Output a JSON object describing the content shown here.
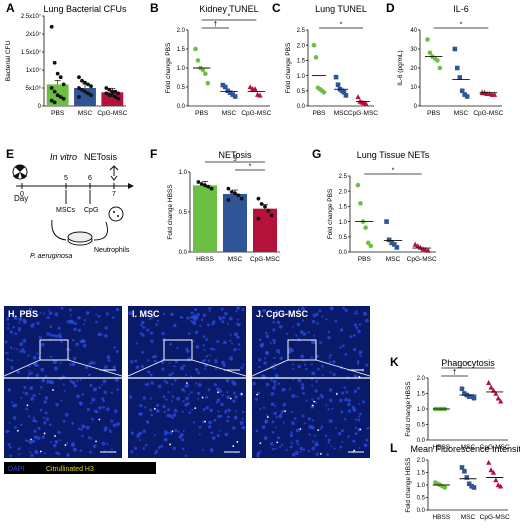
{
  "colors": {
    "green": "#6cbf43",
    "blue": "#2f5597",
    "red": "#b5123a",
    "dots": "#111111",
    "microscopy_bg": "#0a1a6b",
    "cell_blue": "#2a4de0",
    "cit_yellow": "#d9d51a"
  },
  "panels": {
    "A": {
      "letter": "A",
      "title": "Lung Bacterial CFUs",
      "ylabel": "Bacterial CFU",
      "categories": [
        "PBS",
        "MSC",
        "CpG-MSC"
      ],
      "yticks": [
        "0",
        "5x10⁶",
        "1x10⁷",
        "1.5x10⁷",
        "2x10⁷",
        "2.5x10⁷"
      ],
      "bar_colors": [
        "#6cbf43",
        "#2f5597",
        "#b5123a"
      ]
    },
    "B": {
      "letter": "B",
      "title": "Kidney TUNEL",
      "ylabel": "Fold change PBS",
      "categories": [
        "PBS",
        "MSC",
        "CpG-MSC"
      ],
      "yticks": [
        "0.0",
        "0.5",
        "1.0",
        "1.5",
        "2.0"
      ],
      "annotations": [
        "†",
        "*"
      ]
    },
    "C": {
      "letter": "C",
      "title": "Lung TUNEL",
      "ylabel": "Fold change PBS",
      "categories": [
        "PBS",
        "MSC",
        "CpG-MSC"
      ],
      "yticks": [
        "0.0",
        "0.5",
        "1.0",
        "1.5",
        "2.0",
        "2.5"
      ],
      "annotations": [
        "*"
      ]
    },
    "D": {
      "letter": "D",
      "title": "IL-6",
      "ylabel": "IL-6 (pg/mL)",
      "categories": [
        "PBS",
        "MSC",
        "CpG-MSC"
      ],
      "yticks": [
        "0",
        "10",
        "20",
        "30",
        "40"
      ],
      "annotations": [
        "*"
      ]
    },
    "E": {
      "letter": "E",
      "title": "In vitro NETosis",
      "day_label": "Day",
      "day_ticks": [
        "0",
        "5",
        "6",
        "7"
      ],
      "mscs_label": "MSCs",
      "cpg_label": "CpG",
      "bacteria_label": "P. aeruginosa",
      "neutrophils_label": "Neutrophils"
    },
    "F": {
      "letter": "F",
      "title": "NETosis",
      "ylabel": "Fold change HBSS",
      "categories": [
        "HBSS",
        "MSC",
        "CpG-MSC"
      ],
      "yticks": [
        "0.0",
        "0.5",
        "1.0"
      ],
      "annotations": [
        "*",
        "§"
      ]
    },
    "G": {
      "letter": "G",
      "title": "Lung Tissue NETs",
      "ylabel": "Fold change PBS",
      "categories": [
        "PBS",
        "MSC",
        "CpG-MSC"
      ],
      "yticks": [
        "0.0",
        "0.5",
        "1.0",
        "1.5",
        "2.0",
        "2.5"
      ],
      "annotations": [
        "*"
      ]
    },
    "H": {
      "label": "H. PBS"
    },
    "I": {
      "label": "I. MSC"
    },
    "J": {
      "label": "J. CpG-MSC"
    },
    "legend": {
      "dapi": "DAPI",
      "cit": "Citrullinated H3"
    },
    "K": {
      "letter": "K",
      "title": "Phagocytosis",
      "ylabel": "Fold change HBSS",
      "categories": [
        "HBSS",
        "MSC",
        "CpG-MSC"
      ],
      "yticks": [
        "0.0",
        "0.5",
        "1.0",
        "1.5",
        "2.0"
      ],
      "annotations": [
        "†",
        "*"
      ]
    },
    "L": {
      "letter": "L",
      "title": "Mean Fluorescence Intensity",
      "ylabel": "Fold change HBSS",
      "categories": [
        "HBSS",
        "MSC",
        "CpG-MSC"
      ],
      "yticks": [
        "0.0",
        "0.5",
        "1.0",
        "1.5",
        "2.0"
      ]
    }
  },
  "chart_data": [
    {
      "panel": "A",
      "type": "bar",
      "title": "Lung Bacterial CFUs",
      "ylabel": "Bacterial CFU",
      "categories": [
        "PBS",
        "MSC",
        "CpG-MSC"
      ],
      "values": [
        6000000,
        5000000,
        3800000
      ],
      "ylim": [
        0,
        25000000
      ],
      "points": [
        [
          22000000.0,
          12000000.0,
          9000000.0,
          8000000.0,
          6000000.0,
          5000000.0,
          4000000.0,
          3000000.0,
          2500000.0,
          2000000.0,
          1500000.0,
          1000000.0
        ],
        [
          8000000.0,
          7000000.0,
          6500000.0,
          6000000.0,
          5500000.0,
          5000000.0,
          4500000.0,
          4000000.0,
          3500000.0,
          3000000.0,
          2500000.0
        ],
        [
          5000000.0,
          4500000.0,
          4000000.0,
          4000000.0,
          3500000.0,
          3500000.0,
          3000000.0,
          3000000.0,
          2500000.0,
          2000000.0
        ]
      ]
    },
    {
      "panel": "B",
      "type": "scatter",
      "title": "Kidney TUNEL",
      "ylabel": "Fold change PBS",
      "categories": [
        "PBS",
        "MSC",
        "CpG-MSC"
      ],
      "means": [
        1.0,
        0.38,
        0.38
      ],
      "ylim": [
        0,
        2.0
      ],
      "points": [
        [
          1.5,
          1.2,
          1.0,
          0.95,
          0.85,
          0.6
        ],
        [
          0.55,
          0.5,
          0.4,
          0.35,
          0.3,
          0.25
        ],
        [
          0.5,
          0.45,
          0.45,
          0.3,
          0.28
        ]
      ]
    },
    {
      "panel": "C",
      "type": "scatter",
      "title": "Lung TUNEL",
      "ylabel": "Fold change PBS",
      "categories": [
        "PBS",
        "MSC",
        "CpG-MSC"
      ],
      "means": [
        1.0,
        0.55,
        0.15
      ],
      "ylim": [
        0,
        2.5
      ],
      "points": [
        [
          2.0,
          1.6,
          0.6,
          0.55,
          0.5,
          0.45
        ],
        [
          0.95,
          0.7,
          0.55,
          0.5,
          0.45,
          0.35
        ],
        [
          0.3,
          0.15,
          0.12,
          0.1,
          0.08
        ]
      ]
    },
    {
      "panel": "D",
      "type": "scatter",
      "title": "IL-6",
      "ylabel": "IL-6 (pg/mL)",
      "categories": [
        "PBS",
        "MSC",
        "CpG-MSC"
      ],
      "means": [
        26,
        14,
        7
      ],
      "ylim": [
        0,
        40
      ],
      "points": [
        [
          35,
          28,
          26,
          25,
          24,
          20
        ],
        [
          30,
          20,
          15,
          8,
          6,
          5
        ],
        [
          7,
          7,
          6.5,
          6.5,
          6,
          6,
          7,
          6.8
        ]
      ]
    },
    {
      "panel": "F",
      "type": "bar",
      "title": "NETosis",
      "ylabel": "Fold change HBSS",
      "categories": [
        "HBSS",
        "MSC",
        "CpG-MSC"
      ],
      "values": [
        1.0,
        0.87,
        0.65
      ],
      "ylim": [
        0,
        1.2
      ],
      "points": [
        [
          1.05,
          1.02,
          1.0,
          0.98,
          0.95
        ],
        [
          0.95,
          0.9,
          0.88,
          0.85,
          0.8,
          0.78
        ],
        [
          0.8,
          0.72,
          0.68,
          0.62,
          0.55,
          0.5
        ]
      ]
    },
    {
      "panel": "G",
      "type": "scatter",
      "title": "Lung Tissue NETs",
      "ylabel": "Fold change PBS",
      "categories": [
        "PBS",
        "MSC",
        "CpG-MSC"
      ],
      "means": [
        1.0,
        0.38,
        0.13
      ],
      "ylim": [
        0,
        2.5
      ],
      "points": [
        [
          2.2,
          1.6,
          1.0,
          0.8,
          0.3,
          0.2
        ],
        [
          1.0,
          0.4,
          0.3,
          0.25,
          0.15
        ],
        [
          0.25,
          0.2,
          0.15,
          0.1,
          0.08,
          0.05
        ]
      ]
    },
    {
      "panel": "K",
      "type": "scatter",
      "title": "Phagocytosis",
      "ylabel": "Fold change HBSS",
      "categories": [
        "HBSS",
        "MSC",
        "CpG-MSC"
      ],
      "means": [
        1.0,
        1.45,
        1.55
      ],
      "ylim": [
        0,
        2.0
      ],
      "points": [
        [
          1.0,
          1.0,
          1.0,
          1.0,
          1.0
        ],
        [
          1.65,
          1.5,
          1.45,
          1.4,
          1.4,
          1.35
        ],
        [
          1.85,
          1.7,
          1.6,
          1.5,
          1.35,
          1.25
        ]
      ]
    },
    {
      "panel": "L",
      "type": "scatter",
      "title": "Mean Fluorescence Intensity",
      "ylabel": "Fold change HBSS",
      "categories": [
        "HBSS",
        "MSC",
        "CpG-MSC"
      ],
      "means": [
        1.0,
        1.25,
        1.3
      ],
      "ylim": [
        0,
        2.0
      ],
      "points": [
        [
          1.1,
          1.05,
          1.0,
          0.95,
          0.9
        ],
        [
          1.7,
          1.55,
          1.3,
          1.05,
          0.95,
          0.9
        ],
        [
          1.9,
          1.6,
          1.5,
          1.2,
          1.0,
          0.95
        ]
      ]
    }
  ]
}
